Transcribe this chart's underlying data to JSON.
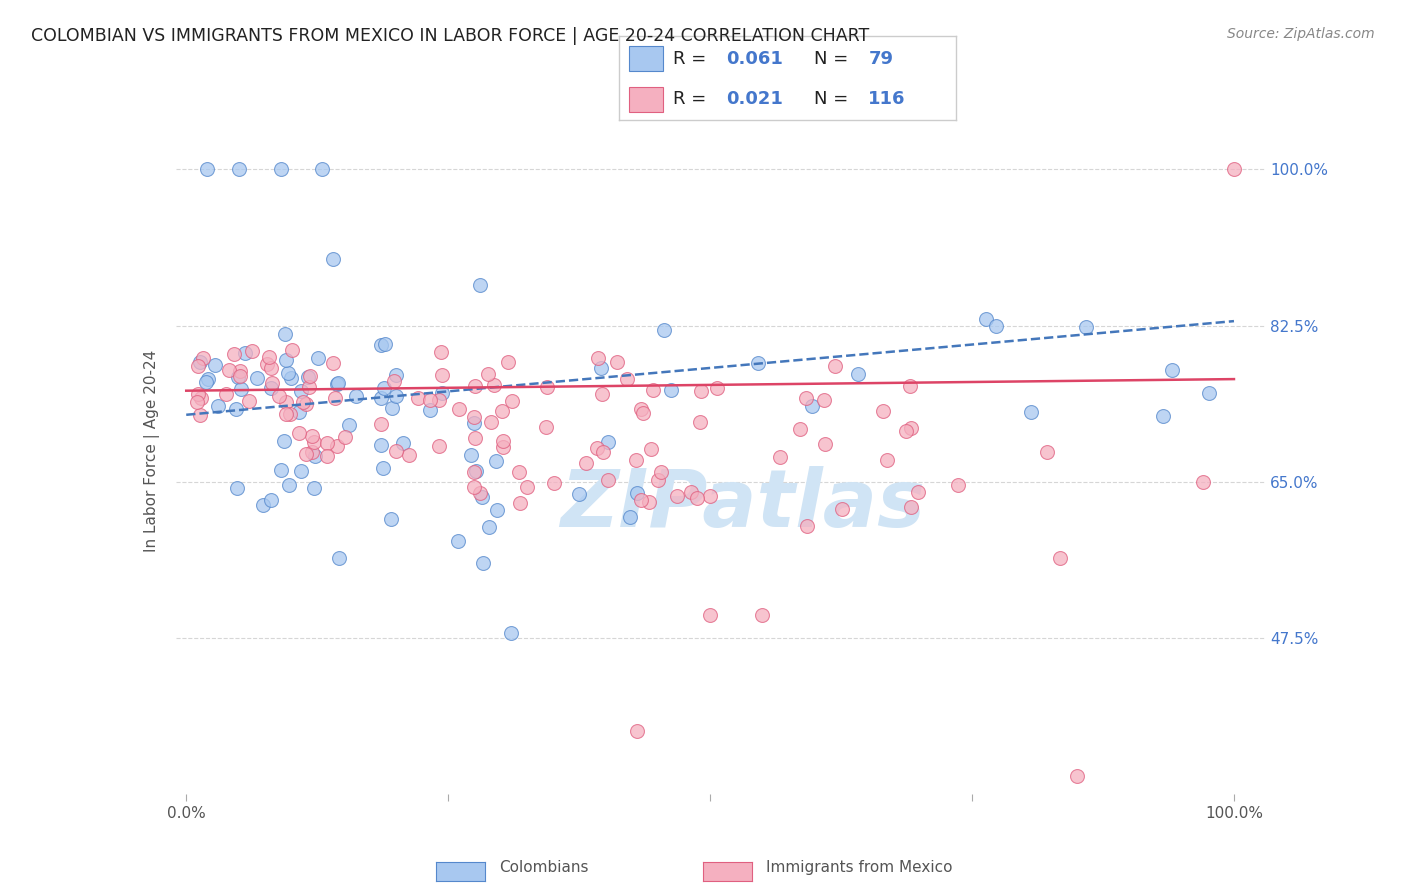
{
  "title": "COLOMBIAN VS IMMIGRANTS FROM MEXICO IN LABOR FORCE | AGE 20-24 CORRELATION CHART",
  "source": "Source: ZipAtlas.com",
  "ylabel": "In Labor Force | Age 20-24",
  "y_ticks": [
    47.5,
    65.0,
    82.5,
    100.0
  ],
  "xlim": [
    0.0,
    1.0
  ],
  "ylim": [
    30.0,
    107.0
  ],
  "blue_R": "0.061",
  "blue_N": "79",
  "pink_R": "0.021",
  "pink_N": "116",
  "blue_color": "#A8C8F0",
  "pink_color": "#F5B0C0",
  "blue_edge_color": "#5588CC",
  "pink_edge_color": "#E06080",
  "blue_line_color": "#4477BB",
  "pink_line_color": "#DD4466",
  "watermark_color": "#D0E4F5",
  "legend_label_blue": "Colombians",
  "legend_label_pink": "Immigrants from Mexico",
  "blue_trend_x0": 0.0,
  "blue_trend_y0": 72.5,
  "blue_trend_x1": 1.0,
  "blue_trend_y1": 83.0,
  "pink_trend_x0": 0.0,
  "pink_trend_y0": 75.2,
  "pink_trend_x1": 1.0,
  "pink_trend_y1": 76.5
}
